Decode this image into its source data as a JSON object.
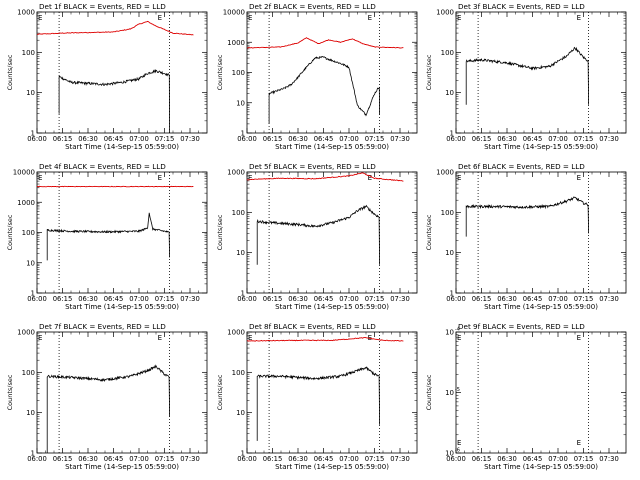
{
  "figure": {
    "x_tick_labels": [
      "06:00",
      "06:15",
      "06:30",
      "06:45",
      "07:00",
      "07:15",
      "07:30"
    ],
    "x_label": "Start Time (14-Sep-15 05:59:00)",
    "y_label": "Counts/sec",
    "colors": {
      "events": "#000000",
      "lld": "#dd0000"
    }
  },
  "chart_data": [
    {
      "type": "line",
      "title": "Det 1f BLACK = Events, RED = LLD",
      "xlabel": "Start Time (14-Sep-15 05:59:00)",
      "ylabel": "Counts/sec",
      "scale": "log",
      "xlim": [
        "06:00",
        "07:40"
      ],
      "ylim": [
        1,
        1000
      ],
      "y_ticks": [
        1,
        10,
        100,
        1000
      ],
      "y_tick_labels": [
        "1",
        "10",
        "100",
        "1000"
      ],
      "markers": [
        "06:13",
        "07:18"
      ],
      "events": {
        "start": "06:13",
        "end": "07:18",
        "step_from": 3,
        "drop_to": 1,
        "x": [
          "06:13",
          "06:20",
          "06:30",
          "06:40",
          "06:50",
          "07:00",
          "07:05",
          "07:10",
          "07:15",
          "07:18"
        ],
        "y": [
          25,
          18,
          17,
          16,
          18,
          22,
          30,
          35,
          30,
          27
        ]
      },
      "lld": {
        "x": [
          "06:00",
          "06:15",
          "06:30",
          "06:45",
          "06:55",
          "07:00",
          "07:05",
          "07:10",
          "07:20",
          "07:32"
        ],
        "y": [
          280,
          300,
          310,
          320,
          380,
          500,
          580,
          450,
          300,
          270
        ]
      }
    },
    {
      "type": "line",
      "title": "Det 2f BLACK = Events, RED = LLD",
      "xlabel": "Start Time (14-Sep-15 05:59:00)",
      "ylabel": "Counts/sec",
      "scale": "log",
      "xlim": [
        "06:00",
        "07:40"
      ],
      "ylim": [
        1,
        10000
      ],
      "y_ticks": [
        1,
        10,
        100,
        1000,
        10000
      ],
      "y_tick_labels": [
        "1",
        "10",
        "100",
        "1000",
        "10000"
      ],
      "markers": [
        "06:13",
        "07:18"
      ],
      "events": {
        "start": "06:13",
        "end": "07:18",
        "step_from": 2,
        "drop_to": 4,
        "x": [
          "06:13",
          "06:18",
          "06:22",
          "06:26",
          "06:30",
          "06:35",
          "06:40",
          "06:45",
          "06:50",
          "06:55",
          "07:00",
          "07:05",
          "07:10",
          "07:15",
          "07:18"
        ],
        "y": [
          20,
          25,
          30,
          40,
          70,
          150,
          300,
          320,
          250,
          200,
          150,
          8,
          4,
          20,
          35
        ]
      },
      "lld": {
        "x": [
          "06:00",
          "06:20",
          "06:30",
          "06:35",
          "06:42",
          "06:48",
          "06:55",
          "07:02",
          "07:08",
          "07:15",
          "07:32"
        ],
        "y": [
          650,
          700,
          950,
          1400,
          900,
          1200,
          1000,
          1300,
          900,
          700,
          650
        ]
      }
    },
    {
      "type": "line",
      "title": "Det 3f BLACK = Events, RED = LLD",
      "xlabel": "Start Time (14-Sep-15 05:59:00)",
      "ylabel": "Counts/sec",
      "scale": "log",
      "xlim": [
        "06:00",
        "07:40"
      ],
      "ylim": [
        1,
        1000
      ],
      "y_ticks": [
        1,
        10,
        100,
        1000
      ],
      "y_tick_labels": [
        "1",
        "10",
        "100",
        "1000"
      ],
      "markers": [
        "06:13",
        "07:18"
      ],
      "events": {
        "start": "06:06",
        "end": "07:18",
        "step_from": 5,
        "drop_to": 5,
        "x": [
          "06:06",
          "06:15",
          "06:30",
          "06:45",
          "06:55",
          "07:05",
          "07:10",
          "07:15",
          "07:18"
        ],
        "y": [
          60,
          65,
          55,
          40,
          45,
          80,
          130,
          75,
          60
        ]
      },
      "lld": null
    },
    {
      "type": "line",
      "title": "Det 4f BLACK = Events, RED = LLD",
      "xlabel": "Start Time (14-Sep-15 05:59:00)",
      "ylabel": "Counts/sec",
      "scale": "log",
      "xlim": [
        "06:00",
        "07:40"
      ],
      "ylim": [
        1,
        10000
      ],
      "y_ticks": [
        1,
        10,
        100,
        1000,
        10000
      ],
      "y_tick_labels": [
        "1",
        "10",
        "100",
        "1000",
        "10000"
      ],
      "markers": [
        "06:13",
        "07:18"
      ],
      "events": {
        "start": "06:06",
        "end": "07:18",
        "step_from": 12,
        "drop_to": 15,
        "x": [
          "06:06",
          "06:20",
          "06:40",
          "07:00",
          "07:05",
          "07:06",
          "07:08",
          "07:15",
          "07:18"
        ],
        "y": [
          120,
          110,
          105,
          110,
          140,
          450,
          130,
          110,
          100
        ]
      },
      "lld": {
        "x": [
          "06:00",
          "07:32"
        ],
        "y": [
          3300,
          3300
        ]
      }
    },
    {
      "type": "line",
      "title": "Det 5f BLACK = Events, RED = LLD",
      "xlabel": "Start Time (14-Sep-15 05:59:00)",
      "ylabel": "Counts/sec",
      "scale": "log",
      "xlim": [
        "06:00",
        "07:40"
      ],
      "ylim": [
        1,
        1000
      ],
      "y_ticks": [
        1,
        10,
        100,
        1000
      ],
      "y_tick_labels": [
        "1",
        "10",
        "100",
        "1000"
      ],
      "markers": [
        "06:13",
        "07:18"
      ],
      "events": {
        "start": "06:06",
        "end": "07:18",
        "step_from": 5,
        "drop_to": 5,
        "x": [
          "06:06",
          "06:15",
          "06:30",
          "06:40",
          "06:50",
          "07:00",
          "07:05",
          "07:10",
          "07:15",
          "07:18"
        ],
        "y": [
          60,
          55,
          50,
          45,
          55,
          75,
          110,
          140,
          90,
          75
        ]
      },
      "lld": {
        "x": [
          "06:00",
          "06:20",
          "06:40",
          "07:00",
          "07:08",
          "07:15",
          "07:32"
        ],
        "y": [
          650,
          700,
          680,
          800,
          950,
          700,
          600
        ]
      }
    },
    {
      "type": "line",
      "title": "Det 6f BLACK = Events, RED = LLD",
      "xlabel": "Start Time (14-Sep-15 05:59:00)",
      "ylabel": "Counts/sec",
      "scale": "log",
      "xlim": [
        "06:00",
        "07:40"
      ],
      "ylim": [
        1,
        1000
      ],
      "y_ticks": [
        1,
        10,
        100,
        1000
      ],
      "y_tick_labels": [
        "1",
        "10",
        "100",
        "1000"
      ],
      "markers": [
        "06:13",
        "07:18"
      ],
      "events": {
        "start": "06:06",
        "end": "07:18",
        "step_from": 25,
        "drop_to": 30,
        "x": [
          "06:06",
          "06:20",
          "06:40",
          "06:55",
          "07:05",
          "07:10",
          "07:15",
          "07:18"
        ],
        "y": [
          140,
          140,
          135,
          140,
          190,
          230,
          170,
          150
        ]
      },
      "lld": null
    },
    {
      "type": "line",
      "title": "Det 7f BLACK = Events, RED = LLD",
      "xlabel": "Start Time (14-Sep-15 05:59:00)",
      "ylabel": "Counts/sec",
      "scale": "log",
      "xlim": [
        "06:00",
        "07:40"
      ],
      "ylim": [
        1,
        1000
      ],
      "y_ticks": [
        1,
        10,
        100,
        1000
      ],
      "y_tick_labels": [
        "1",
        "10",
        "100",
        "1000"
      ],
      "markers": [
        "06:13",
        "07:18"
      ],
      "events": {
        "start": "06:06",
        "end": "07:18",
        "step_from": 1,
        "drop_to": 8,
        "x": [
          "06:06",
          "06:20",
          "06:40",
          "06:55",
          "07:05",
          "07:10",
          "07:15",
          "07:18"
        ],
        "y": [
          80,
          75,
          65,
          80,
          110,
          140,
          90,
          75
        ]
      },
      "lld": null
    },
    {
      "type": "line",
      "title": "Det 8f BLACK = Events, RED = LLD",
      "xlabel": "Start Time (14-Sep-15 05:59:00)",
      "ylabel": "Counts/sec",
      "scale": "log",
      "xlim": [
        "06:00",
        "07:40"
      ],
      "ylim": [
        1,
        1000
      ],
      "y_ticks": [
        1,
        10,
        100,
        1000
      ],
      "y_tick_labels": [
        "1",
        "10",
        "100",
        "1000"
      ],
      "markers": [
        "06:13",
        "07:18"
      ],
      "events": {
        "start": "06:06",
        "end": "07:18",
        "step_from": 2,
        "drop_to": 5,
        "x": [
          "06:06",
          "06:20",
          "06:40",
          "06:55",
          "07:05",
          "07:10",
          "07:15",
          "07:18"
        ],
        "y": [
          80,
          80,
          70,
          80,
          110,
          130,
          90,
          80
        ]
      },
      "lld": {
        "x": [
          "06:00",
          "06:30",
          "06:50",
          "07:05",
          "07:10",
          "07:20",
          "07:32"
        ],
        "y": [
          600,
          620,
          620,
          700,
          720,
          620,
          600
        ]
      }
    },
    {
      "type": "line",
      "title": "Det 9f BLACK = Events, RED = LLD",
      "xlabel": "Start Time (14-Sep-15 05:59:00)",
      "ylabel": "Counts/sec",
      "scale": "log",
      "xlim": [
        "06:00",
        "07:40"
      ],
      "ylim": [
        1e-06,
        0.0001
      ],
      "y_ticks": [
        1e-06,
        1e-05,
        0.0001
      ],
      "y_tick_labels": [
        "10",
        "10",
        "10"
      ],
      "y_tick_exps": [
        "-6",
        "-5",
        "-4"
      ],
      "markers": [
        "06:13",
        "07:18"
      ],
      "events": null,
      "lld": null
    }
  ]
}
